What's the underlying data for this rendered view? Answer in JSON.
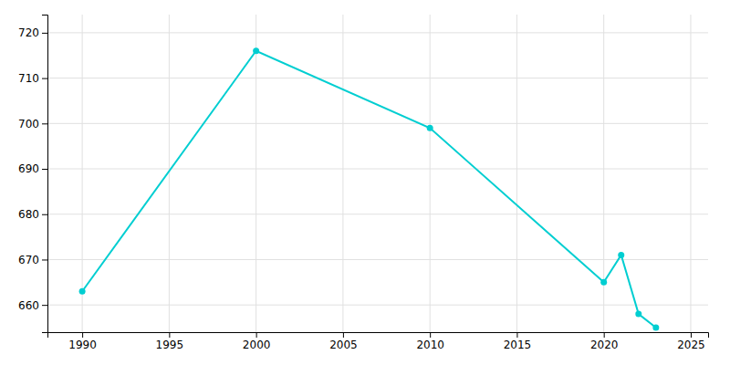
{
  "chart_data": {
    "type": "line",
    "x": [
      1990,
      2000,
      2010,
      2020,
      2021,
      2022,
      2023
    ],
    "values": [
      663,
      716,
      699,
      665,
      671,
      658,
      655
    ],
    "color": "#00CED1",
    "marker": "circle",
    "xlim": [
      1988,
      2026
    ],
    "ylim": [
      654,
      724
    ],
    "xticks": [
      1990,
      1995,
      2000,
      2005,
      2010,
      2015,
      2020,
      2025
    ],
    "yticks": [
      660,
      670,
      680,
      690,
      700,
      710,
      720
    ],
    "grid": true
  }
}
